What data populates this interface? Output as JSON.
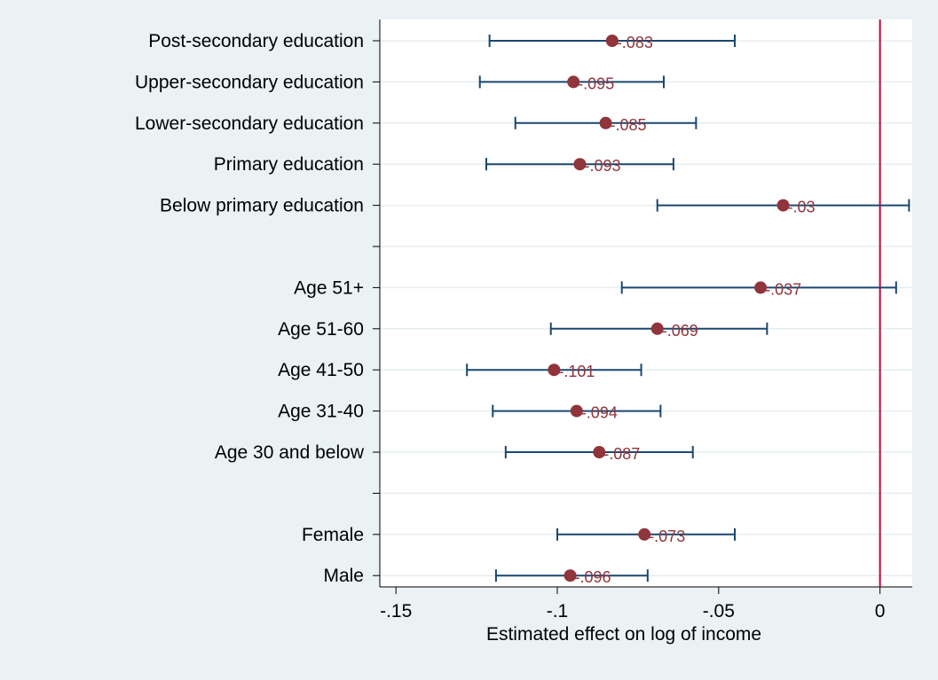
{
  "colors": {
    "background": "#eaf2f3",
    "plot_background": "#ffffff",
    "gridline": "#e6eef1",
    "errorbar": "#1a476f",
    "point": "#90353b",
    "label_text": "#90353b",
    "reference_line": "#c10534"
  },
  "chart_data": {
    "type": "scatter",
    "title": "",
    "xlabel": "Estimated effect on log of income",
    "ylabel": "",
    "xlim": [
      -0.155,
      0.01
    ],
    "xticks": [
      -0.15,
      -0.1,
      -0.05,
      0
    ],
    "xtick_labels": [
      "-.15",
      "-.1",
      "-.05",
      "0"
    ],
    "reference_line_x": 0,
    "grid": true,
    "legend": "none",
    "rows": [
      {
        "category": "Post-secondary education",
        "estimate": -0.083,
        "label": "-.083",
        "ci_low": -0.121,
        "ci_high": -0.045
      },
      {
        "category": "Upper-secondary education",
        "estimate": -0.095,
        "label": "-.095",
        "ci_low": -0.124,
        "ci_high": -0.067
      },
      {
        "category": "Lower-secondary education",
        "estimate": -0.085,
        "label": "-.085",
        "ci_low": -0.113,
        "ci_high": -0.057
      },
      {
        "category": "Primary education",
        "estimate": -0.093,
        "label": "-.093",
        "ci_low": -0.122,
        "ci_high": -0.064
      },
      {
        "category": "Below primary education",
        "estimate": -0.03,
        "label": "-.03",
        "ci_low": -0.069,
        "ci_high": 0.009
      },
      {
        "category": "",
        "estimate": null,
        "label": "",
        "ci_low": null,
        "ci_high": null
      },
      {
        "category": "Age 51+",
        "estimate": -0.037,
        "label": "-.037",
        "ci_low": -0.08,
        "ci_high": 0.005
      },
      {
        "category": "Age 51-60",
        "estimate": -0.069,
        "label": "-.069",
        "ci_low": -0.102,
        "ci_high": -0.035
      },
      {
        "category": "Age 41-50",
        "estimate": -0.101,
        "label": "-.101",
        "ci_low": -0.128,
        "ci_high": -0.074
      },
      {
        "category": "Age 31-40",
        "estimate": -0.094,
        "label": "-.094",
        "ci_low": -0.12,
        "ci_high": -0.068
      },
      {
        "category": "Age 30 and below",
        "estimate": -0.087,
        "label": "-.087",
        "ci_low": -0.116,
        "ci_high": -0.058
      },
      {
        "category": "",
        "estimate": null,
        "label": "",
        "ci_low": null,
        "ci_high": null
      },
      {
        "category": "Female",
        "estimate": -0.073,
        "label": "-.073",
        "ci_low": -0.1,
        "ci_high": -0.045
      },
      {
        "category": "Male",
        "estimate": -0.096,
        "label": "-.096",
        "ci_low": -0.119,
        "ci_high": -0.072
      }
    ]
  }
}
